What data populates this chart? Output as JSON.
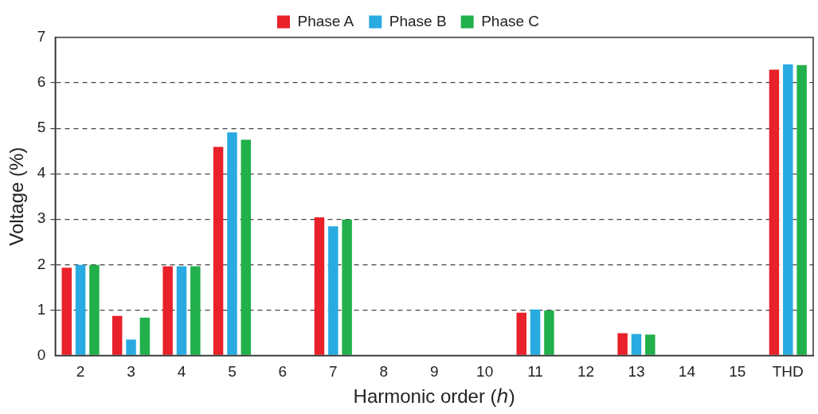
{
  "chart_data": {
    "type": "bar",
    "xlabel": "Harmonic order (ℎ)",
    "ylabel": "Voltage (%)",
    "categories": [
      "2",
      "3",
      "4",
      "5",
      "6",
      "7",
      "8",
      "9",
      "10",
      "11",
      "12",
      "13",
      "14",
      "15",
      "THD"
    ],
    "series": [
      {
        "name": "Phase A",
        "color": "#e8212a",
        "values": [
          1.93,
          0.87,
          1.96,
          4.59,
          null,
          3.04,
          null,
          null,
          null,
          0.94,
          null,
          0.49,
          null,
          null,
          6.29
        ]
      },
      {
        "name": "Phase B",
        "color": "#29abe2",
        "values": [
          1.99,
          0.35,
          1.96,
          4.91,
          null,
          2.84,
          null,
          null,
          null,
          1.01,
          null,
          0.47,
          null,
          null,
          6.41
        ]
      },
      {
        "name": "Phase C",
        "color": "#21b04b",
        "values": [
          1.99,
          0.83,
          1.96,
          4.75,
          null,
          2.99,
          null,
          null,
          null,
          0.99,
          null,
          0.46,
          null,
          null,
          6.39
        ]
      }
    ],
    "ylim": [
      0,
      7
    ],
    "yticks": [
      0,
      1,
      2,
      3,
      4,
      5,
      6,
      7
    ],
    "grid": "y",
    "legend": "top"
  }
}
